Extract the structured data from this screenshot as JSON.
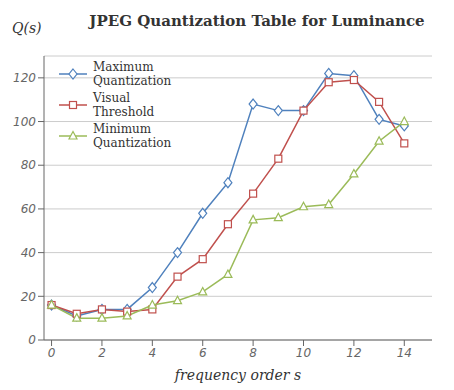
{
  "chart_data": {
    "type": "line",
    "title": "JPEG Quantization Table for Luminance",
    "xlabel": "frequency order s",
    "ylabel": "Q(s)",
    "x": [
      0,
      1,
      2,
      3,
      4,
      5,
      6,
      7,
      8,
      9,
      10,
      11,
      12,
      13,
      14
    ],
    "series": [
      {
        "name": "Maximum\nQuantization",
        "color": "#4f81bd",
        "marker": "diamond",
        "values": [
          16,
          11,
          14,
          14,
          24,
          40,
          58,
          72,
          108,
          105,
          105,
          122,
          121,
          101,
          98
        ]
      },
      {
        "name": "Visual\nThreshold",
        "color": "#c0504d",
        "marker": "square",
        "values": [
          16,
          12,
          14,
          13,
          14,
          29,
          37,
          53,
          67,
          83,
          105,
          118,
          119,
          109,
          90
        ]
      },
      {
        "name": "Minimum\nQuantization",
        "color": "#9bbb59",
        "marker": "triangle",
        "values": [
          16,
          10,
          10,
          11,
          16,
          18,
          22,
          30,
          55,
          56,
          61,
          62,
          76,
          91,
          100
        ]
      }
    ],
    "xlim": [
      -0.3,
      15.1
    ],
    "ylim": [
      0,
      130
    ],
    "xticks": [
      0,
      2,
      4,
      6,
      8,
      10,
      12,
      14
    ],
    "yticks": [
      0,
      20,
      40,
      60,
      80,
      100,
      120
    ],
    "grid": true,
    "legend": "upper left"
  }
}
